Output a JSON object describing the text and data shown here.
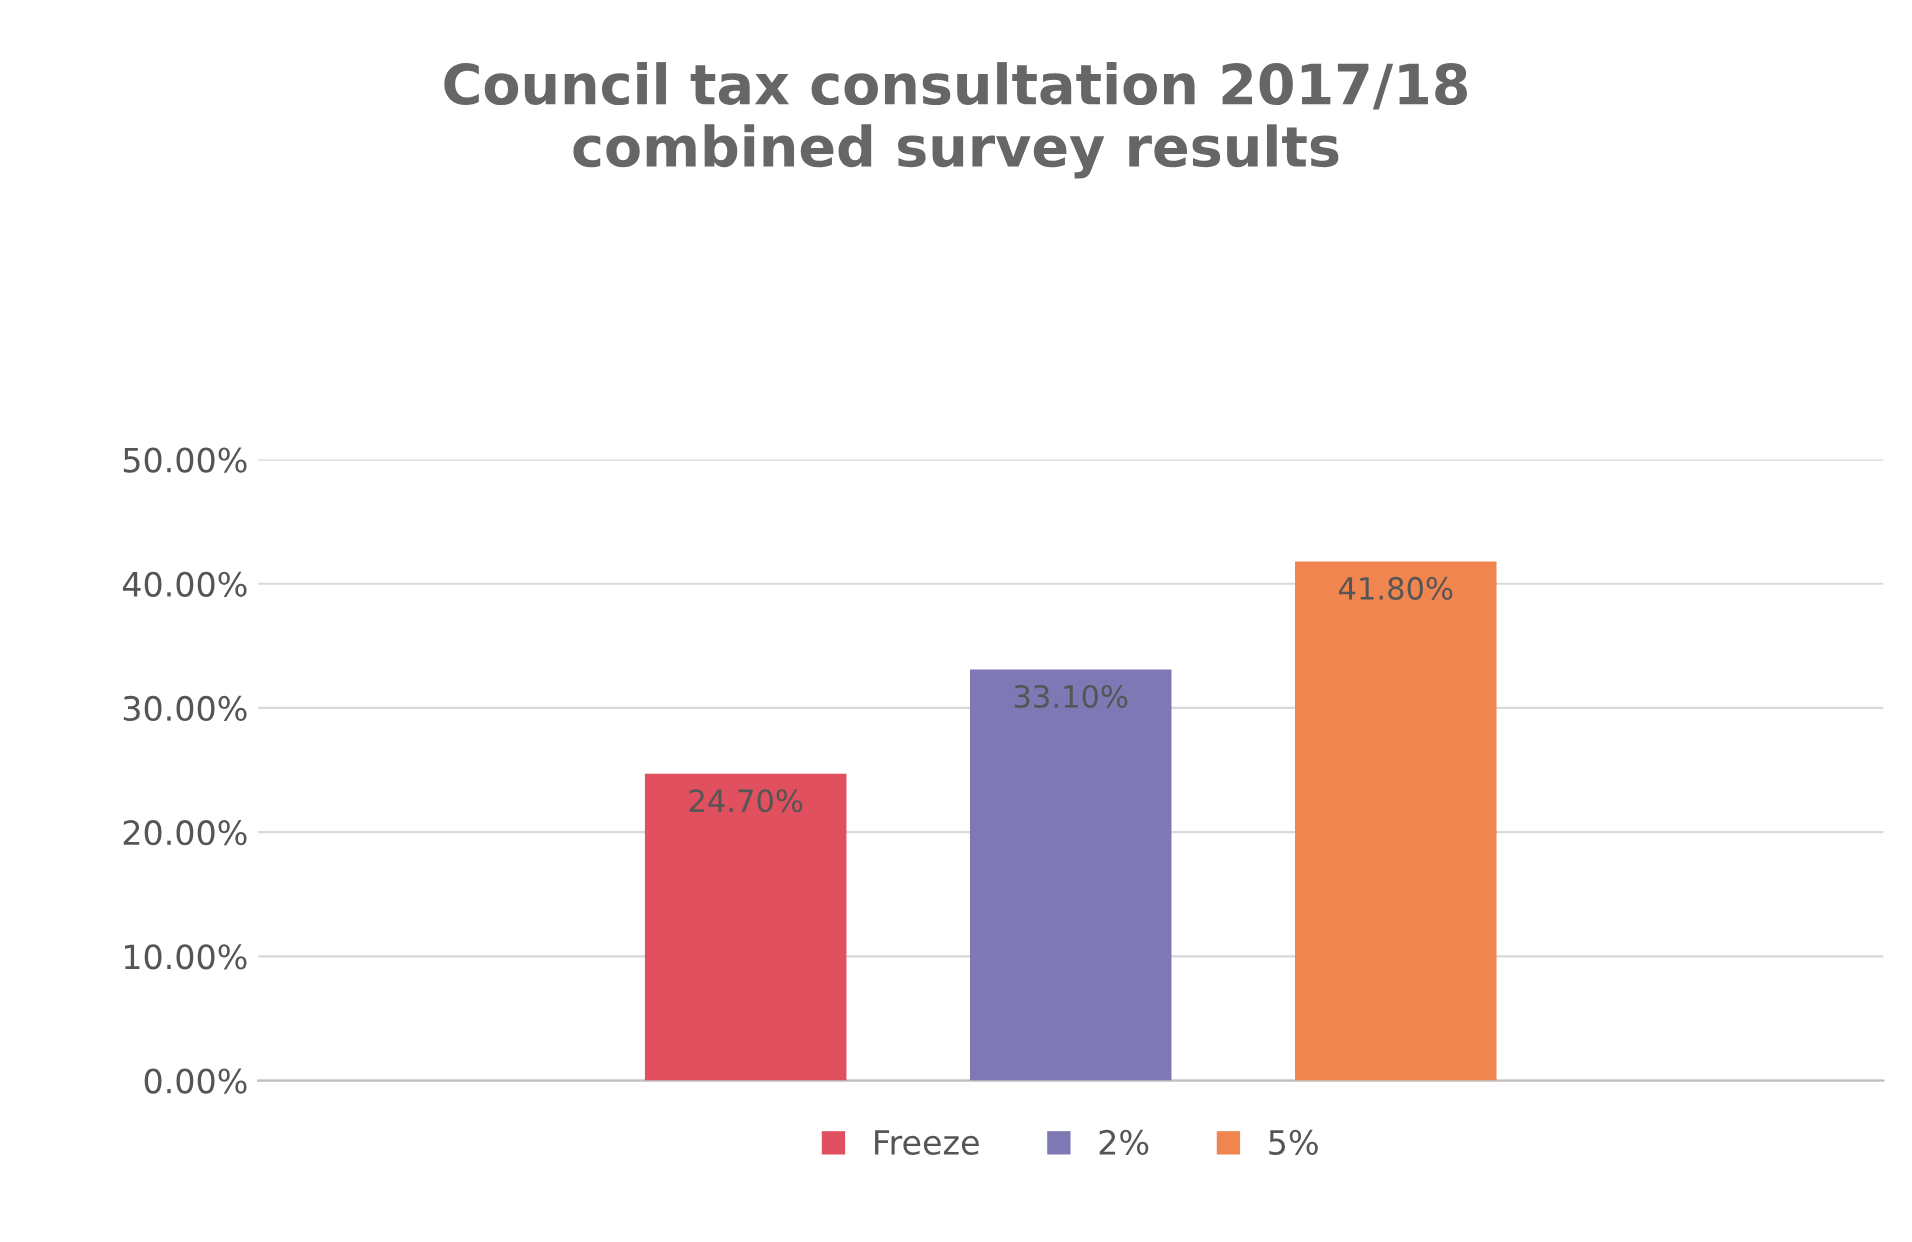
{
  "chart_data": {
    "type": "bar",
    "title": "Council tax consultation 2017/18\ncombined survey results",
    "categories": [
      null
    ],
    "series": [
      {
        "name": "Freeze",
        "color": "#e0505e",
        "values": [
          24.7
        ],
        "value_labels": [
          "24.70%"
        ]
      },
      {
        "name": "2%",
        "color": "#7e78b4",
        "values": [
          33.1
        ],
        "value_labels": [
          "33.10%"
        ]
      },
      {
        "name": "5%",
        "color": "#f0854f",
        "values": [
          41.8
        ],
        "value_labels": [
          "41.80%"
        ]
      }
    ],
    "ylim": [
      0,
      50
    ],
    "yticks": [
      {
        "value": 0,
        "label": "0.00%"
      },
      {
        "value": 10,
        "label": "10.00%"
      },
      {
        "value": 20,
        "label": "20.00%"
      },
      {
        "value": 30,
        "label": "30.00%"
      },
      {
        "value": 40,
        "label": "40.00%"
      },
      {
        "value": 50,
        "label": "50.00%"
      }
    ],
    "grid": "y",
    "legend": "bottom"
  }
}
